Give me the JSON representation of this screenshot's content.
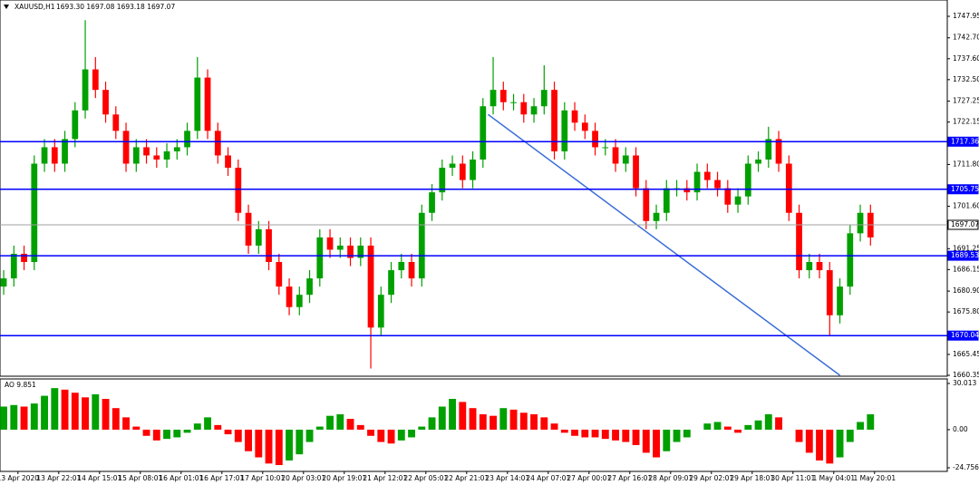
{
  "chart_data": [
    {
      "type": "candlestick",
      "title": "XAUUSD,H1",
      "subtitle": "1693.30 1697.08 1693.18 1697.07",
      "up_color": "#00a000",
      "down_color": "#ff0000",
      "open": [
        1682,
        1684,
        1690,
        1688,
        1712,
        1716,
        1712,
        1718,
        1725,
        1735,
        1730,
        1724,
        1720,
        1712,
        1716,
        1714,
        1713,
        1715,
        1716,
        1720,
        1733,
        1720,
        1714,
        1711,
        1700,
        1692,
        1696,
        1688,
        1682,
        1677,
        1680,
        1684,
        1694,
        1691,
        1692,
        1689,
        1692,
        1672,
        1680,
        1686,
        1688,
        1684,
        1700,
        1705,
        1711,
        1712,
        1708,
        1713,
        1726,
        1730,
        1727,
        1727,
        1724,
        1726,
        1730,
        1715,
        1725,
        1722,
        1720,
        1716,
        1716,
        1712,
        1714,
        1706,
        1698,
        1700,
        1706,
        1706,
        1705,
        1710,
        1708,
        1706,
        1702,
        1704,
        1712,
        1713,
        1718,
        1712,
        1700,
        1686,
        1688,
        1686,
        1675,
        1682,
        1695,
        1700
      ],
      "high": [
        1686,
        1692,
        1692,
        1714,
        1718,
        1718,
        1720,
        1727,
        1747,
        1738,
        1732,
        1726,
        1722,
        1718,
        1718,
        1716,
        1717,
        1718,
        1722,
        1738,
        1735,
        1722,
        1716,
        1713,
        1702,
        1698,
        1698,
        1690,
        1684,
        1682,
        1686,
        1696,
        1696,
        1694,
        1694,
        1694,
        1694,
        1682,
        1688,
        1690,
        1690,
        1702,
        1707,
        1713,
        1714,
        1714,
        1715,
        1728,
        1738,
        1732,
        1729,
        1729,
        1728,
        1736,
        1732,
        1727,
        1727,
        1724,
        1722,
        1718,
        1718,
        1716,
        1716,
        1708,
        1702,
        1708,
        1708,
        1708,
        1712,
        1712,
        1710,
        1708,
        1706,
        1714,
        1715,
        1721,
        1720,
        1714,
        1702,
        1690,
        1690,
        1688,
        1684,
        1697,
        1702,
        1702
      ],
      "low": [
        1680,
        1682,
        1686,
        1686,
        1710,
        1710,
        1710,
        1716,
        1723,
        1728,
        1722,
        1718,
        1710,
        1710,
        1712,
        1711,
        1711,
        1713,
        1714,
        1718,
        1718,
        1712,
        1709,
        1698,
        1690,
        1690,
        1686,
        1680,
        1675,
        1675,
        1678,
        1682,
        1689,
        1689,
        1687,
        1687,
        1662,
        1670,
        1678,
        1684,
        1682,
        1682,
        1698,
        1703,
        1709,
        1706,
        1706,
        1711,
        1724,
        1725,
        1725,
        1722,
        1722,
        1724,
        1713,
        1713,
        1720,
        1718,
        1714,
        1714,
        1710,
        1710,
        1704,
        1696,
        1696,
        1698,
        1704,
        1703,
        1703,
        1706,
        1704,
        1700,
        1700,
        1702,
        1710,
        1711,
        1710,
        1698,
        1684,
        1684,
        1684,
        1670,
        1673,
        1680,
        1693,
        1692
      ],
      "close": [
        1684,
        1690,
        1688,
        1712,
        1716,
        1712,
        1718,
        1725,
        1735,
        1730,
        1724,
        1720,
        1712,
        1716,
        1714,
        1713,
        1715,
        1716,
        1720,
        1733,
        1720,
        1714,
        1711,
        1700,
        1692,
        1696,
        1688,
        1682,
        1677,
        1680,
        1684,
        1694,
        1691,
        1692,
        1689,
        1692,
        1672,
        1680,
        1686,
        1688,
        1684,
        1700,
        1705,
        1711,
        1712,
        1708,
        1713,
        1726,
        1730,
        1727,
        1727,
        1724,
        1726,
        1730,
        1715,
        1725,
        1722,
        1720,
        1716,
        1716,
        1712,
        1714,
        1706,
        1698,
        1700,
        1706,
        1706,
        1705,
        1710,
        1708,
        1706,
        1702,
        1704,
        1712,
        1713,
        1718,
        1712,
        1700,
        1686,
        1688,
        1686,
        1675,
        1682,
        1695,
        1700,
        1694
      ],
      "xlim": [
        -0.36,
        92.53
      ],
      "ylim": [
        1660.35,
        1747.95
      ],
      "yticks": [
        1747.95,
        {
          "value": 1742.7,
          "label": "1742.70"
        },
        {
          "value": 1737.6,
          "label": "1737.60"
        },
        {
          "value": 1732.5,
          "label": "1732.50"
        },
        1727.25,
        1722.15,
        {
          "value": 1711.8,
          "label": "1711.80"
        },
        {
          "value": 1701.6,
          "label": "1701.60"
        },
        1691.25,
        1686.15,
        {
          "value": 1680.9,
          "label": "1680.90"
        },
        {
          "value": 1675.8,
          "label": "1675.80"
        },
        1665.45,
        1660.35
      ],
      "xticks": [
        {
          "value": 1.4,
          "label": "13 Apr 2020"
        },
        {
          "value": 5.4,
          "label": "13 Apr 22:01"
        },
        {
          "value": 9.4,
          "label": "14 Apr 15:01"
        },
        {
          "value": 13.4,
          "label": "15 Apr 08:01"
        },
        {
          "value": 17.4,
          "label": "16 Apr 01:01"
        },
        {
          "value": 21.4,
          "label": "16 Apr 17:01"
        },
        {
          "value": 25.4,
          "label": "17 Apr 10:01"
        },
        {
          "value": 29.4,
          "label": "20 Apr 03:01"
        },
        {
          "value": 33.4,
          "label": "20 Apr 19:01"
        },
        {
          "value": 37.4,
          "label": "21 Apr 12:01"
        },
        {
          "value": 41.4,
          "label": "22 Apr 05:01"
        },
        {
          "value": 45.4,
          "label": "22 Apr 21:01"
        },
        {
          "value": 49.4,
          "label": "23 Apr 14:01"
        },
        {
          "value": 53.4,
          "label": "24 Apr 07:01"
        },
        {
          "value": 57.4,
          "label": "27 Apr 00:01"
        },
        {
          "value": 61.4,
          "label": "27 Apr 16:01"
        },
        {
          "value": 65.4,
          "label": "28 Apr 09:01"
        },
        {
          "value": 69.4,
          "label": "29 Apr 02:01"
        },
        {
          "value": 73.4,
          "label": "29 Apr 18:01"
        },
        {
          "value": 77.4,
          "label": "30 Apr 11:01"
        },
        {
          "value": 81.4,
          "label": "1 May 04:01"
        },
        {
          "value": 85.4,
          "label": "1 May 20:01"
        }
      ],
      "levels": [
        {
          "value": 1717.36,
          "color": "#0000ff"
        },
        {
          "value": 1705.75,
          "color": "#0000ff"
        },
        {
          "value": 1697.07,
          "color": "#a0a0a0"
        },
        {
          "value": 1689.53,
          "color": "#0000ff"
        },
        {
          "value": 1670.04,
          "color": "#0000ff"
        }
      ],
      "trendline": {
        "x": [
          47.5,
          82
        ],
        "y": [
          1724,
          1660.35
        ],
        "color": "#3a6fd8"
      }
    },
    {
      "type": "bar",
      "title": "AO 9.851",
      "up_color": "#00a000",
      "down_color": "#ff0000",
      "values": [
        15,
        16,
        15,
        17,
        22,
        27,
        26,
        24,
        21,
        23,
        20,
        14,
        8,
        2,
        -4,
        -7,
        -6,
        -5,
        -2,
        4,
        8,
        3,
        -3,
        -8,
        -14,
        -18,
        -22,
        -23,
        -20,
        -16,
        -8,
        2,
        9,
        10,
        7,
        3,
        -4,
        -8,
        -9,
        -7,
        -5,
        2,
        8,
        15,
        20,
        18,
        14,
        10,
        9,
        14,
        13,
        11,
        10,
        8,
        4,
        -2,
        -4,
        -5,
        -5,
        -6,
        -7,
        -8,
        -10,
        -15,
        -18,
        -14,
        -8,
        -5,
        0,
        4,
        5,
        2,
        -2,
        3,
        6,
        10,
        8,
        0,
        -8,
        -15,
        -20,
        -22,
        -18,
        -8,
        5,
        10
      ],
      "ylim": [
        -24.756,
        30.013
      ],
      "yticks": [
        30.013,
        {
          "value": 0,
          "label": "0.00"
        },
        -24.756
      ]
    }
  ]
}
